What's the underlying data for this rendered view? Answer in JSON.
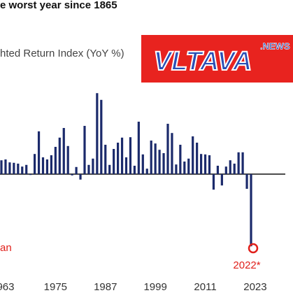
{
  "chart_data": {
    "type": "bar",
    "title": "e worst year since 1865",
    "subtitle": "hted Return Index (YoY %)",
    "categories": [
      null,
      "963",
      null,
      null,
      null,
      null,
      null,
      null,
      null,
      null,
      null,
      null,
      null,
      "1975",
      null,
      null,
      null,
      null,
      null,
      null,
      null,
      null,
      null,
      null,
      null,
      "1987",
      null,
      null,
      null,
      null,
      null,
      null,
      null,
      null,
      null,
      null,
      null,
      "1999",
      null,
      null,
      null,
      null,
      null,
      null,
      null,
      null,
      null,
      null,
      null,
      "2011",
      null,
      null,
      null,
      null,
      null,
      null,
      null,
      null,
      null,
      null,
      null,
      "2023"
    ],
    "values": [
      3.3,
      3.5,
      2.8,
      2.7,
      2.5,
      1.8,
      2.2,
      -0.2,
      4.8,
      10.2,
      4.0,
      3.5,
      4.5,
      6.5,
      8.7,
      11.0,
      6.7,
      -0.3,
      1.7,
      -1.3,
      11.5,
      2.2,
      3.7,
      19.3,
      17.7,
      7.0,
      2.2,
      6.0,
      7.5,
      8.7,
      4.0,
      8.8,
      2.0,
      12.5,
      4.7,
      1.3,
      8.0,
      7.3,
      5.8,
      5.0,
      12.0,
      9.8,
      2.3,
      7.0,
      3.0,
      3.7,
      9.0,
      7.5,
      4.8,
      4.7,
      4.5,
      -3.7,
      2.0,
      -2.7,
      1.8,
      3.3,
      2.5,
      5.2,
      5.2,
      -3.5,
      -17.2,
      null
    ],
    "color": "#1b2a6b",
    "ylim": [
      -20,
      20
    ],
    "annotations": [
      {
        "text": "2022*",
        "color": "#e0201b"
      },
      {
        "text": "an",
        "color": "#e0201b"
      }
    ],
    "watermark": {
      "text": "VLTAVA",
      "sup": ".NEWS"
    }
  }
}
